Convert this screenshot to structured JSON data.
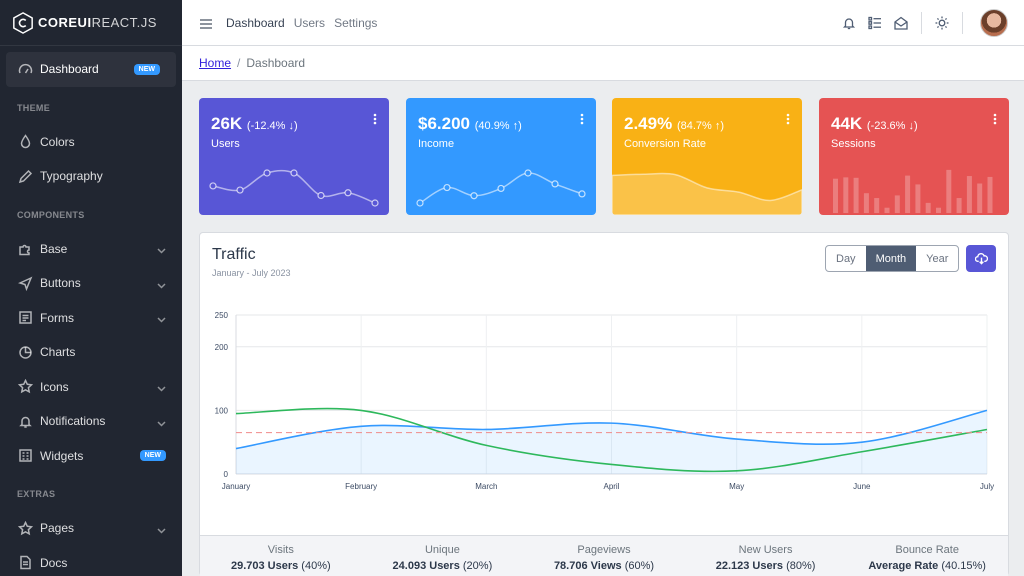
{
  "brand": {
    "bold": "COREUI",
    "thin": "REACT.JS"
  },
  "sidebar": {
    "items": [
      {
        "type": "item",
        "label": "Dashboard",
        "badge": "NEW",
        "icon": "speedometer-icon",
        "active": true
      },
      {
        "type": "title",
        "label": "THEME"
      },
      {
        "type": "item",
        "label": "Colors",
        "icon": "drop-icon"
      },
      {
        "type": "item",
        "label": "Typography",
        "icon": "pencil-icon"
      },
      {
        "type": "title",
        "label": "COMPONENTS"
      },
      {
        "type": "item",
        "label": "Base",
        "icon": "puzzle-icon",
        "chevron": true
      },
      {
        "type": "item",
        "label": "Buttons",
        "icon": "cursor-icon",
        "chevron": true
      },
      {
        "type": "item",
        "label": "Forms",
        "icon": "notes-icon",
        "chevron": true
      },
      {
        "type": "item",
        "label": "Charts",
        "icon": "chart-pie-icon"
      },
      {
        "type": "item",
        "label": "Icons",
        "icon": "star-icon",
        "chevron": true
      },
      {
        "type": "item",
        "label": "Notifications",
        "icon": "bell-icon",
        "chevron": true
      },
      {
        "type": "item",
        "label": "Widgets",
        "badge": "NEW",
        "icon": "calculator-icon"
      },
      {
        "type": "title",
        "label": "EXTRAS"
      },
      {
        "type": "item",
        "label": "Pages",
        "icon": "star-icon",
        "chevron": true
      },
      {
        "type": "item",
        "label": "Docs",
        "icon": "description-icon"
      }
    ]
  },
  "header": {
    "nav": [
      "Dashboard",
      "Users",
      "Settings"
    ],
    "icons": [
      "bell-icon",
      "list-icon",
      "envelope-open-icon",
      "sun-icon"
    ]
  },
  "breadcrumb": {
    "home": "Home",
    "current": "Dashboard"
  },
  "widgets": [
    {
      "value": "26K",
      "change": "(-12.4% ↓)",
      "label": "Users",
      "color": "#5856d6",
      "kind": "line",
      "data": [
        65,
        59,
        84,
        84,
        51,
        55,
        40
      ]
    },
    {
      "value": "$6.200",
      "change": "(40.9% ↑)",
      "label": "Income",
      "color": "#3399ff",
      "kind": "line",
      "data": [
        1,
        18,
        9,
        17,
        34,
        22,
        11
      ]
    },
    {
      "value": "2.49%",
      "change": "(84.7% ↑)",
      "label": "Conversion Rate",
      "color": "#f9b115",
      "kind": "area",
      "data": [
        78,
        81,
        80,
        45,
        34,
        12,
        40
      ]
    },
    {
      "value": "44K",
      "change": "(-23.6% ↓)",
      "label": "Sessions",
      "color": "#e55353",
      "kind": "bar",
      "data": [
        78,
        81,
        80,
        45,
        34,
        12,
        40,
        85,
        65,
        23,
        12,
        98,
        34,
        84,
        67,
        82
      ]
    }
  ],
  "traffic": {
    "title": "Traffic",
    "subtitle": "January - July 2023",
    "ranges": [
      "Day",
      "Month",
      "Year"
    ],
    "selected_range": "Month"
  },
  "chart_data": {
    "type": "line",
    "categories": [
      "January",
      "February",
      "March",
      "April",
      "May",
      "June",
      "July"
    ],
    "ylim": [
      0,
      250
    ],
    "yticks": [
      0,
      100,
      200,
      250
    ],
    "series": [
      {
        "values": [
          40,
          75,
          70,
          80,
          55,
          50,
          100
        ],
        "color": "#3399ff",
        "fill": true
      },
      {
        "values": [
          95,
          100,
          45,
          15,
          5,
          35,
          70
        ],
        "color": "#2eb85c",
        "fill": false
      },
      {
        "values": [
          65,
          65,
          65,
          65,
          65,
          65,
          65
        ],
        "color": "#e55353",
        "dashed": true
      }
    ],
    "grid": true
  },
  "stats": [
    {
      "title": "Visits",
      "value": "29.703 Users",
      "pct": "(40%)"
    },
    {
      "title": "Unique",
      "value": "24.093 Users",
      "pct": "(20%)"
    },
    {
      "title": "Pageviews",
      "value": "78.706 Views",
      "pct": "(60%)"
    },
    {
      "title": "New Users",
      "value": "22.123 Users",
      "pct": "(80%)"
    },
    {
      "title": "Bounce Rate",
      "value": "Average Rate",
      "pct": "(40.15%)"
    }
  ]
}
